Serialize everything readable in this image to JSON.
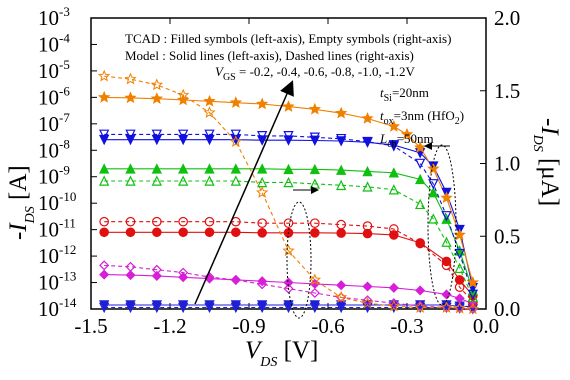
{
  "chart_data": {
    "type": "line",
    "xlabel": {
      "main": "V",
      "sub": "DS",
      "unit": " [V]"
    },
    "ylabel_left": {
      "main": "-I",
      "sub": "DS",
      "unit": " [A]"
    },
    "ylabel_right": {
      "main": "-I",
      "sub": "DS",
      "unit": " [μA]"
    },
    "xlim": [
      -1.5,
      0.0
    ],
    "x_ticks": [
      {
        "value": -1.5,
        "label": "-1.5"
      },
      {
        "value": -1.2,
        "label": "-1.2"
      },
      {
        "value": -0.9,
        "label": "-0.9"
      },
      {
        "value": -0.6,
        "label": "-0.6"
      },
      {
        "value": -0.3,
        "label": "-0.3"
      },
      {
        "value": 0.0,
        "label": "0.0"
      }
    ],
    "y_left_log_range": [
      -14,
      -3
    ],
    "y_left_ticks": [
      {
        "exp": -3,
        "label": "10",
        "sup": "-3"
      },
      {
        "exp": -4,
        "label": "10",
        "sup": "-4"
      },
      {
        "exp": -5,
        "label": "10",
        "sup": "-5"
      },
      {
        "exp": -6,
        "label": "10",
        "sup": "-6"
      },
      {
        "exp": -7,
        "label": "10",
        "sup": "-7"
      },
      {
        "exp": -8,
        "label": "10",
        "sup": "-8"
      },
      {
        "exp": -9,
        "label": "10",
        "sup": "-9"
      },
      {
        "exp": -10,
        "label": "10",
        "sup": "-10"
      },
      {
        "exp": -11,
        "label": "10",
        "sup": "-11"
      },
      {
        "exp": -12,
        "label": "10",
        "sup": "-12"
      },
      {
        "exp": -13,
        "label": "10",
        "sup": "-13"
      },
      {
        "exp": -14,
        "label": "10",
        "sup": "-14"
      }
    ],
    "y_right_range": [
      0.0,
      2.0
    ],
    "y_right_ticks": [
      {
        "value": 0.0,
        "label": "0.0"
      },
      {
        "value": 0.5,
        "label": "0.5"
      },
      {
        "value": 1.0,
        "label": "1.0"
      },
      {
        "value": 1.5,
        "label": "1.5"
      },
      {
        "value": 2.0,
        "label": "2.0"
      }
    ],
    "annotations": {
      "line1": "TCAD : Filled symbols (left-axis), Empty symbols (right-axis)",
      "line2": "Model :  Solid lines (left-axis), Dashed lines (right-axis)",
      "vgs": {
        "main": "V",
        "sub": "GS",
        "text": " = -0.2, -0.4, -0.6, -0.8, -1.0, -1.2V"
      },
      "tsi": {
        "main": "t",
        "sub": "Si",
        "text": "=20nm"
      },
      "tox": {
        "main": "t",
        "sub": "ox",
        "text": "=3nm (HfO",
        "sub2": "2",
        "end": ")"
      },
      "lch": {
        "main": "L",
        "sub": "ch",
        "text": "=50nm"
      }
    },
    "series": [
      {
        "vgs": -0.2,
        "color": "#1f1fd6",
        "marker": "triangle-down",
        "log_x": [
          -1.45,
          -1.35,
          -1.25,
          -1.15,
          -1.05,
          -0.95,
          -0.85,
          -0.75,
          -0.65,
          -0.55,
          -0.45,
          -0.35,
          -0.25,
          -0.15,
          -0.1,
          -0.05
        ],
        "log_y": [
          -13.85,
          -13.85,
          -13.85,
          -13.85,
          -13.85,
          -13.85,
          -13.85,
          -13.85,
          -13.85,
          -13.85,
          -13.85,
          -13.85,
          -13.85,
          -13.85,
          -13.9,
          -13.9
        ],
        "lin_x": [
          -1.45,
          -1.35,
          -1.25,
          -1.15,
          -1.05,
          -0.95,
          -0.85,
          -0.75,
          -0.65,
          -0.55,
          -0.45,
          -0.35,
          -0.25,
          -0.15,
          -0.1,
          -0.05
        ],
        "lin_y": [
          0.01,
          0.01,
          0.01,
          0.01,
          0.01,
          0.01,
          0.01,
          0.01,
          0.01,
          0.01,
          0.01,
          0.01,
          0.01,
          0.01,
          0.005,
          0.0
        ]
      },
      {
        "vgs": -0.4,
        "color": "#d61fd6",
        "marker": "diamond",
        "log_x": [
          -1.45,
          -1.35,
          -1.25,
          -1.15,
          -1.05,
          -0.95,
          -0.85,
          -0.75,
          -0.65,
          -0.55,
          -0.45,
          -0.35,
          -0.25,
          -0.15,
          -0.1,
          -0.05
        ],
        "log_y": [
          -12.7,
          -12.72,
          -12.75,
          -12.8,
          -12.85,
          -12.9,
          -12.95,
          -13.0,
          -13.05,
          -13.1,
          -13.15,
          -13.2,
          -13.3,
          -13.45,
          -13.6,
          -13.8
        ],
        "lin_x": [
          -1.45,
          -1.35,
          -1.25,
          -1.15,
          -1.05,
          -0.95,
          -0.85,
          -0.75,
          -0.65,
          -0.55,
          -0.45,
          -0.35,
          -0.25,
          -0.15,
          -0.1,
          -0.05
        ],
        "lin_y": [
          0.3,
          0.29,
          0.27,
          0.25,
          0.22,
          0.2,
          0.17,
          0.14,
          0.11,
          0.08,
          0.06,
          0.04,
          0.02,
          0.01,
          0.005,
          0.0
        ]
      },
      {
        "vgs": -0.6,
        "color": "#e01010",
        "marker": "circle",
        "log_x": [
          -1.45,
          -1.35,
          -1.25,
          -1.15,
          -1.05,
          -0.95,
          -0.85,
          -0.75,
          -0.65,
          -0.55,
          -0.45,
          -0.35,
          -0.25,
          -0.15,
          -0.1,
          -0.05
        ],
        "log_y": [
          -11.1,
          -11.1,
          -11.1,
          -11.1,
          -11.1,
          -11.1,
          -11.12,
          -11.12,
          -11.12,
          -11.13,
          -11.15,
          -11.2,
          -11.5,
          -12.2,
          -12.9,
          -13.5
        ],
        "lin_x": [
          -1.45,
          -1.35,
          -1.25,
          -1.15,
          -1.05,
          -0.95,
          -0.85,
          -0.75,
          -0.65,
          -0.55,
          -0.45,
          -0.35,
          -0.25,
          -0.15,
          -0.1,
          -0.05
        ],
        "lin_y": [
          0.6,
          0.6,
          0.6,
          0.6,
          0.6,
          0.6,
          0.59,
          0.59,
          0.59,
          0.58,
          0.57,
          0.55,
          0.45,
          0.3,
          0.15,
          0.05
        ]
      },
      {
        "vgs": -0.8,
        "color": "#10c010",
        "marker": "triangle-up",
        "log_x": [
          -1.45,
          -1.35,
          -1.25,
          -1.15,
          -1.05,
          -0.95,
          -0.85,
          -0.75,
          -0.65,
          -0.55,
          -0.45,
          -0.35,
          -0.25,
          -0.2,
          -0.15,
          -0.1,
          -0.05
        ],
        "log_y": [
          -8.7,
          -8.7,
          -8.7,
          -8.7,
          -8.7,
          -8.7,
          -8.7,
          -8.72,
          -8.72,
          -8.75,
          -8.8,
          -8.85,
          -9.1,
          -9.6,
          -10.6,
          -11.8,
          -13.3
        ],
        "lin_x": [
          -1.45,
          -1.35,
          -1.25,
          -1.15,
          -1.05,
          -0.95,
          -0.85,
          -0.75,
          -0.65,
          -0.55,
          -0.45,
          -0.35,
          -0.25,
          -0.2,
          -0.15,
          -0.1,
          -0.05
        ],
        "lin_y": [
          0.88,
          0.88,
          0.88,
          0.88,
          0.88,
          0.88,
          0.87,
          0.87,
          0.86,
          0.85,
          0.84,
          0.82,
          0.72,
          0.62,
          0.46,
          0.28,
          0.08
        ]
      },
      {
        "vgs": -1.0,
        "color": "#1010e0",
        "marker": "triangle-down-filled",
        "log_x": [
          -1.45,
          -1.35,
          -1.25,
          -1.15,
          -1.05,
          -0.95,
          -0.85,
          -0.75,
          -0.65,
          -0.55,
          -0.45,
          -0.35,
          -0.25,
          -0.2,
          -0.15,
          -0.1,
          -0.05
        ],
        "log_y": [
          -7.6,
          -7.6,
          -7.6,
          -7.6,
          -7.6,
          -7.6,
          -7.62,
          -7.62,
          -7.63,
          -7.65,
          -7.7,
          -7.8,
          -8.1,
          -8.6,
          -9.6,
          -11.0,
          -13.2
        ],
        "lin_x": [
          -1.45,
          -1.35,
          -1.25,
          -1.15,
          -1.05,
          -0.95,
          -0.85,
          -0.75,
          -0.65,
          -0.55,
          -0.45,
          -0.35,
          -0.25,
          -0.2,
          -0.15,
          -0.1,
          -0.05
        ],
        "lin_y": [
          1.2,
          1.2,
          1.2,
          1.2,
          1.2,
          1.2,
          1.19,
          1.19,
          1.18,
          1.17,
          1.15,
          1.12,
          1.0,
          0.86,
          0.64,
          0.38,
          0.1
        ]
      },
      {
        "vgs": -1.2,
        "color": "#f08000",
        "marker": "star",
        "log_x": [
          -1.45,
          -1.35,
          -1.25,
          -1.15,
          -1.05,
          -0.95,
          -0.85,
          -0.75,
          -0.65,
          -0.55,
          -0.45,
          -0.35,
          -0.3,
          -0.25,
          -0.2,
          -0.15,
          -0.1,
          -0.05
        ],
        "log_y": [
          -6.0,
          -6.02,
          -6.05,
          -6.1,
          -6.15,
          -6.2,
          -6.25,
          -6.35,
          -6.45,
          -6.6,
          -6.8,
          -7.1,
          -7.4,
          -7.9,
          -8.7,
          -9.8,
          -11.2,
          -13.0
        ],
        "lin_x": [
          -1.45,
          -1.35,
          -1.25,
          -1.15,
          -1.05,
          -0.95,
          -0.85,
          -0.75,
          -0.65,
          -0.55,
          -0.45,
          -0.35,
          -0.25,
          -0.15,
          -0.1,
          -0.05
        ],
        "lin_y": [
          1.6,
          1.58,
          1.54,
          1.47,
          1.35,
          1.15,
          0.8,
          0.4,
          0.2,
          0.08,
          0.04,
          0.02,
          0.01,
          0.01,
          0.005,
          0.0
        ]
      }
    ]
  }
}
